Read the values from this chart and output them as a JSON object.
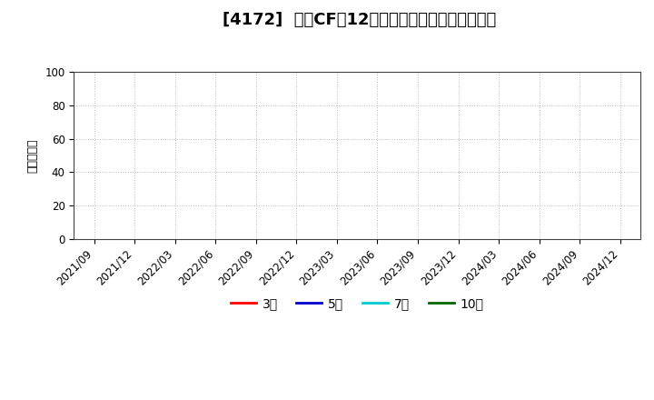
{
  "title": "[4172]  投賄CFだ12か月移動合計の平均値の推移",
  "ylabel": "（百万円）",
  "ylim": [
    0,
    100
  ],
  "yticks": [
    0,
    20,
    40,
    60,
    80,
    100
  ],
  "xlabels": [
    "2021/09",
    "2021/12",
    "2022/03",
    "2022/06",
    "2022/09",
    "2022/12",
    "2023/03",
    "2023/06",
    "2023/09",
    "2023/12",
    "2024/03",
    "2024/06",
    "2024/09",
    "2024/12"
  ],
  "legend_entries": [
    {
      "label": "3年",
      "color": "#ff0000"
    },
    {
      "label": "5年",
      "color": "#0000cc"
    },
    {
      "label": "7年",
      "color": "#00cccc"
    },
    {
      "label": "10年",
      "color": "#006600"
    }
  ],
  "background_color": "#ffffff",
  "grid_color": "#bbbbbb",
  "title_fontsize": 13,
  "axis_fontsize": 8.5,
  "ylabel_fontsize": 9,
  "legend_fontsize": 10
}
